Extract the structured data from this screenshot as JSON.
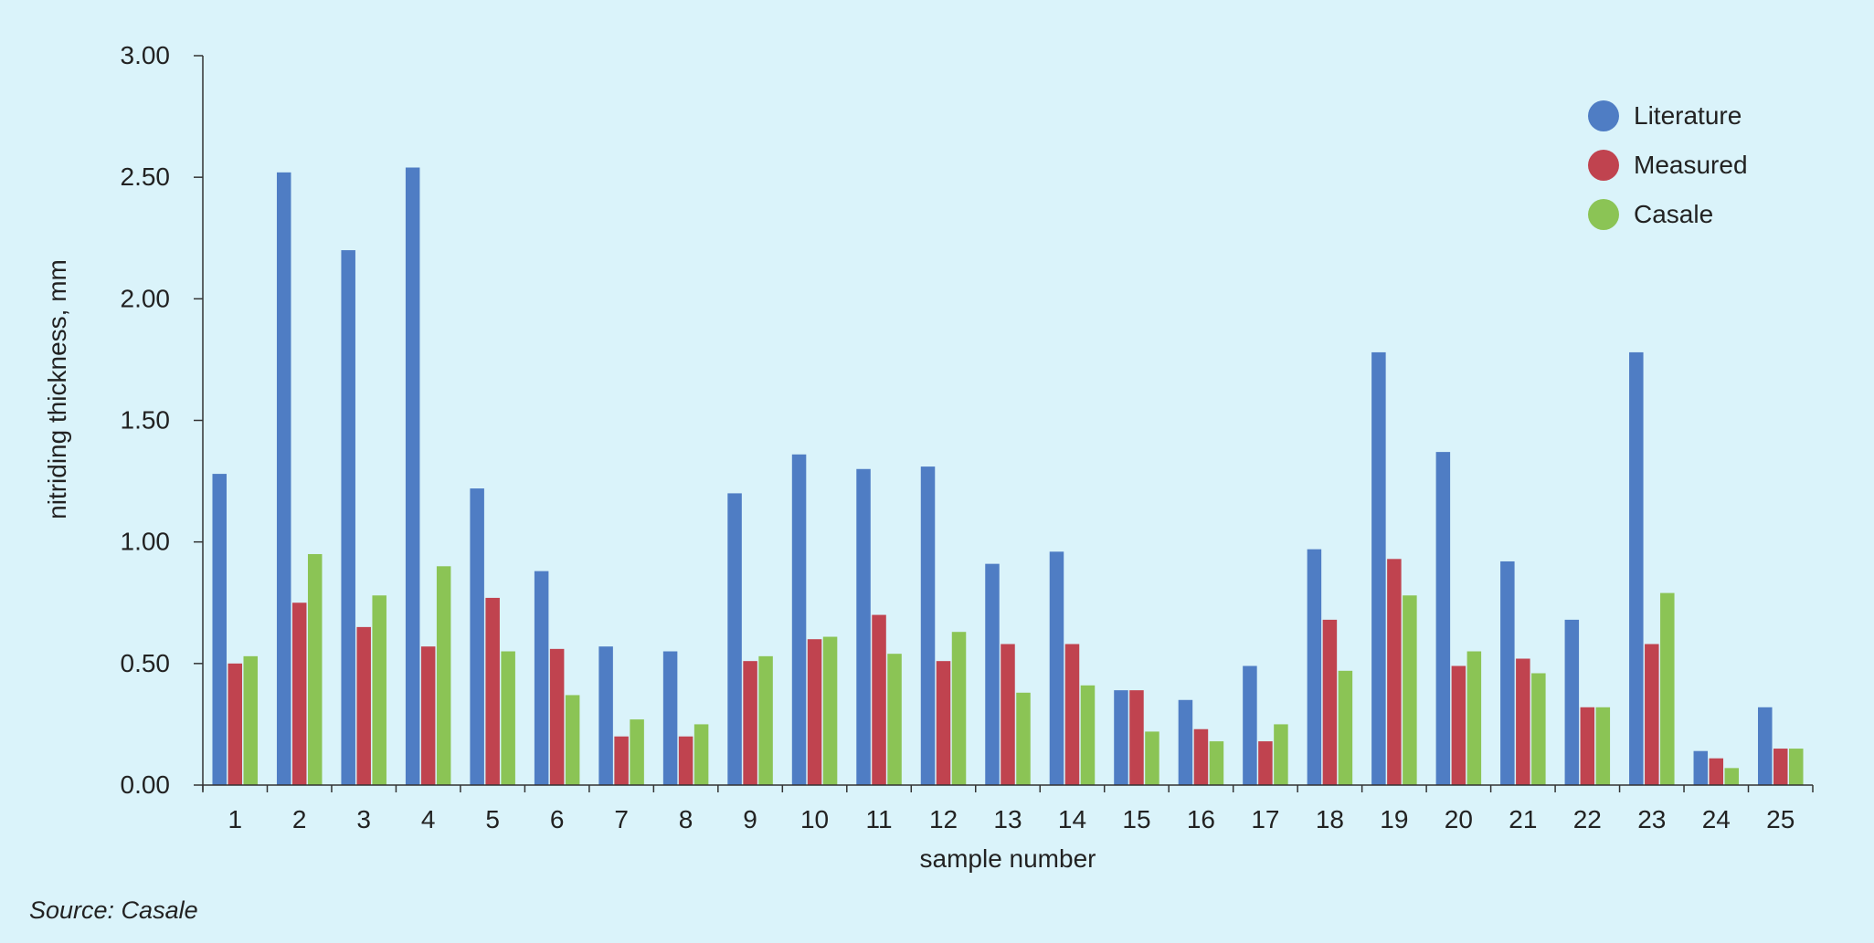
{
  "chart_data": {
    "type": "bar",
    "title": "",
    "xlabel": "sample number",
    "ylabel": "nitriding thickness, mm",
    "ylim": [
      0,
      3
    ],
    "yticks": [
      "0.00",
      "0.50",
      "1.00",
      "1.50",
      "2.00",
      "2.50",
      "3.00"
    ],
    "grid": false,
    "legend_position": "top-right",
    "categories": [
      "1",
      "2",
      "3",
      "4",
      "5",
      "6",
      "7",
      "8",
      "9",
      "10",
      "11",
      "12",
      "13",
      "14",
      "15",
      "16",
      "17",
      "18",
      "19",
      "20",
      "21",
      "22",
      "23",
      "24",
      "25"
    ],
    "series": [
      {
        "name": "Literature",
        "color": "#4f7dc4",
        "values": [
          1.28,
          2.52,
          2.2,
          2.54,
          1.22,
          0.88,
          0.57,
          0.55,
          1.2,
          1.36,
          1.3,
          1.31,
          0.91,
          0.96,
          0.39,
          0.35,
          0.49,
          0.97,
          1.78,
          1.37,
          0.92,
          0.68,
          1.78,
          0.14,
          0.32
        ]
      },
      {
        "name": "Measured",
        "color": "#c0434f",
        "values": [
          0.5,
          0.75,
          0.65,
          0.57,
          0.77,
          0.56,
          0.2,
          0.2,
          0.51,
          0.6,
          0.7,
          0.51,
          0.58,
          0.58,
          0.39,
          0.23,
          0.18,
          0.68,
          0.93,
          0.49,
          0.52,
          0.32,
          0.58,
          0.11,
          0.15
        ]
      },
      {
        "name": "Casale",
        "color": "#8bc455",
        "values": [
          0.53,
          0.95,
          0.78,
          0.9,
          0.55,
          0.37,
          0.27,
          0.25,
          0.53,
          0.61,
          0.54,
          0.63,
          0.38,
          0.41,
          0.22,
          0.18,
          0.25,
          0.47,
          0.78,
          0.55,
          0.46,
          0.32,
          0.79,
          0.07,
          0.15
        ]
      }
    ]
  },
  "source_note": "Source: Casale"
}
